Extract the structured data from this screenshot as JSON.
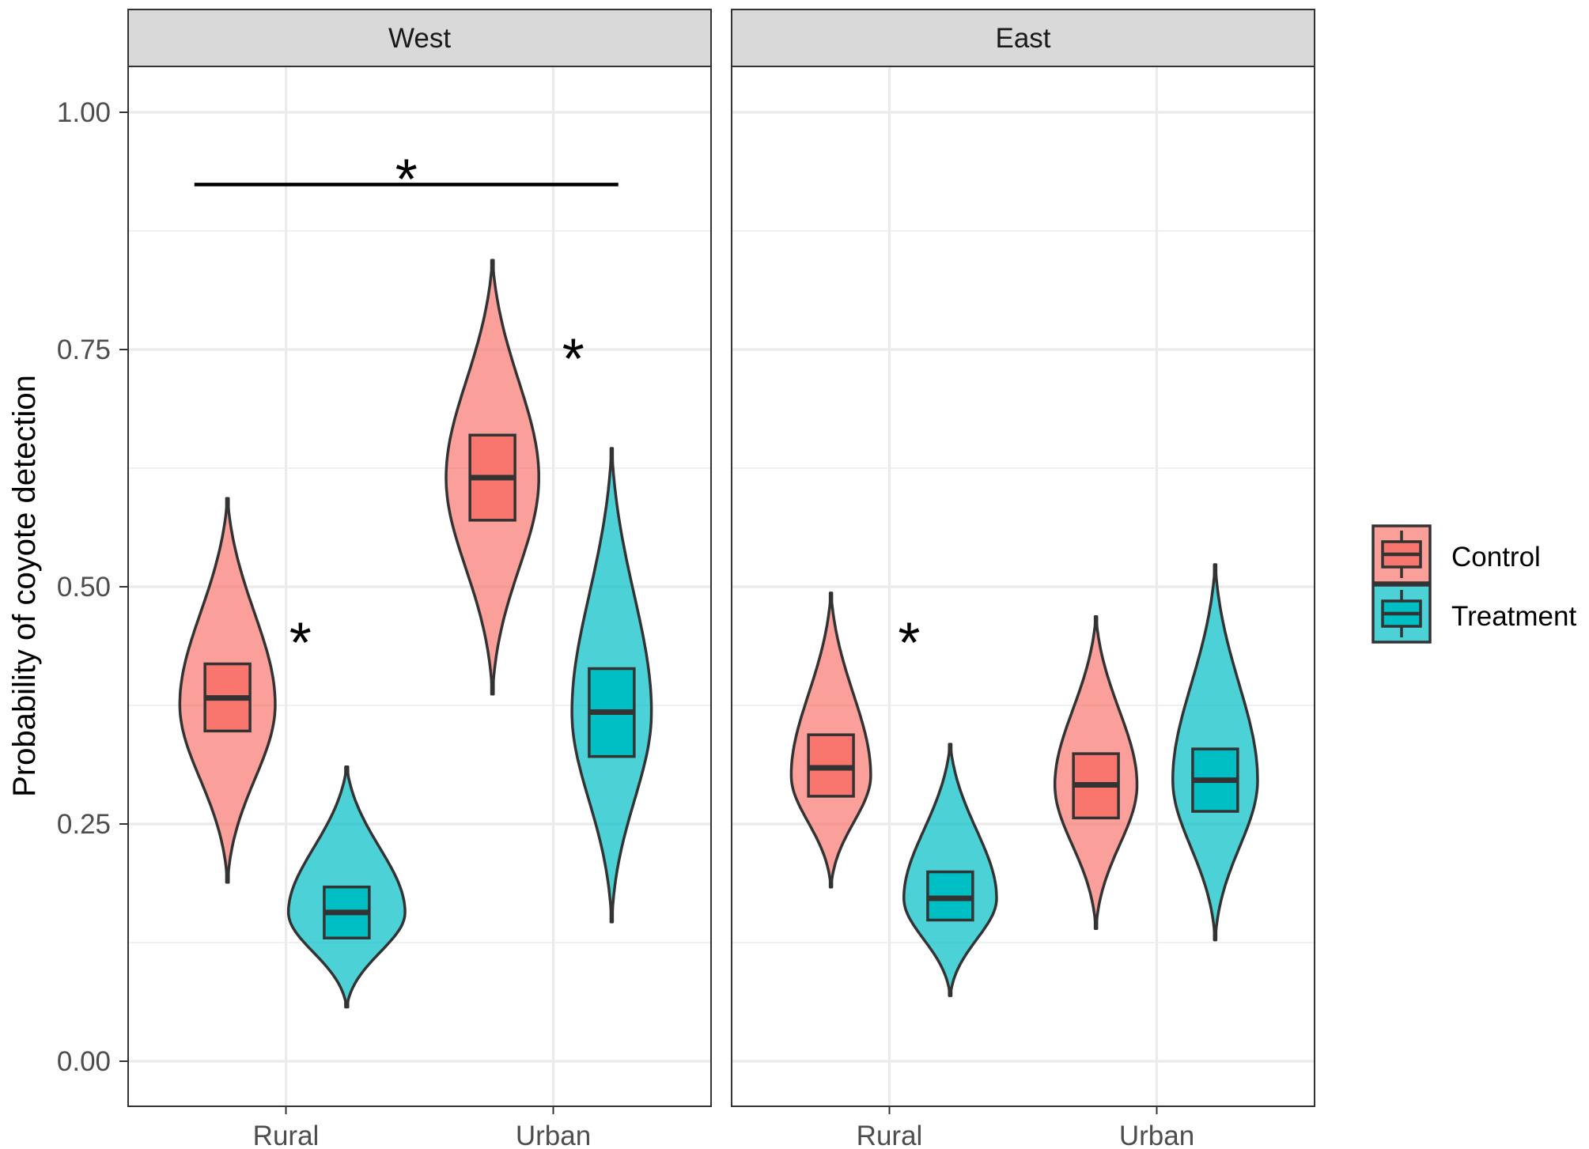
{
  "chart_data": {
    "type": "violin",
    "ylabel": "Probability of coyote detection",
    "xlabel": "",
    "ylim": [
      -0.04,
      1.06
    ],
    "y_ticks": [
      "0.00",
      "0.25",
      "0.50",
      "0.75",
      "1.00"
    ],
    "y_tick_values": [
      0.0,
      0.25,
      0.5,
      0.75,
      1.0
    ],
    "categories": [
      "Rural",
      "Urban"
    ],
    "legend": {
      "position": "right",
      "entries": [
        {
          "name": "Control",
          "color": "#F8766D"
        },
        {
          "name": "Treatment",
          "color": "#00BFC4"
        }
      ]
    },
    "significance_marker": "*",
    "facets": [
      {
        "name": "West",
        "groups": [
          {
            "category": "Rural",
            "series": "Control",
            "min": 0.197,
            "q1": 0.357,
            "median": 0.392,
            "q3": 0.428,
            "max": 0.603,
            "mode": 0.385,
            "width": 0.36
          },
          {
            "category": "Rural",
            "series": "Treatment",
            "min": 0.065,
            "q1": 0.138,
            "median": 0.165,
            "q3": 0.192,
            "max": 0.319,
            "mode": 0.165,
            "width": 0.44
          },
          {
            "category": "Urban",
            "series": "Control",
            "min": 0.396,
            "q1": 0.58,
            "median": 0.625,
            "q3": 0.67,
            "max": 0.855,
            "mode": 0.625,
            "width": 0.35
          },
          {
            "category": "Urban",
            "series": "Treatment",
            "min": 0.155,
            "q1": 0.33,
            "median": 0.377,
            "q3": 0.423,
            "max": 0.656,
            "mode": 0.377,
            "width": 0.3
          }
        ],
        "annotations": [
          {
            "label": "*",
            "x": 1.05,
            "y": 0.47
          },
          {
            "label": "*",
            "x": 2.08,
            "y": 0.77
          },
          {
            "label": "*",
            "bracket": [
              0.65,
              2.25
            ],
            "y_line": 0.935,
            "y": 0.96
          }
        ]
      },
      {
        "name": "East",
        "groups": [
          {
            "category": "Rural",
            "series": "Control",
            "min": 0.192,
            "q1": 0.288,
            "median": 0.318,
            "q3": 0.353,
            "max": 0.503,
            "mode": 0.31,
            "width": 0.3
          },
          {
            "category": "Rural",
            "series": "Treatment",
            "min": 0.077,
            "q1": 0.157,
            "median": 0.18,
            "q3": 0.208,
            "max": 0.343,
            "mode": 0.18,
            "width": 0.35
          },
          {
            "category": "Urban",
            "series": "Control",
            "min": 0.148,
            "q1": 0.265,
            "median": 0.3,
            "q3": 0.333,
            "max": 0.478,
            "mode": 0.3,
            "width": 0.31
          },
          {
            "category": "Urban",
            "series": "Treatment",
            "min": 0.136,
            "q1": 0.272,
            "median": 0.305,
            "q3": 0.338,
            "max": 0.533,
            "mode": 0.305,
            "width": 0.32
          }
        ],
        "annotations": [
          {
            "label": "*",
            "x": 1.07,
            "y": 0.47
          }
        ]
      }
    ]
  }
}
